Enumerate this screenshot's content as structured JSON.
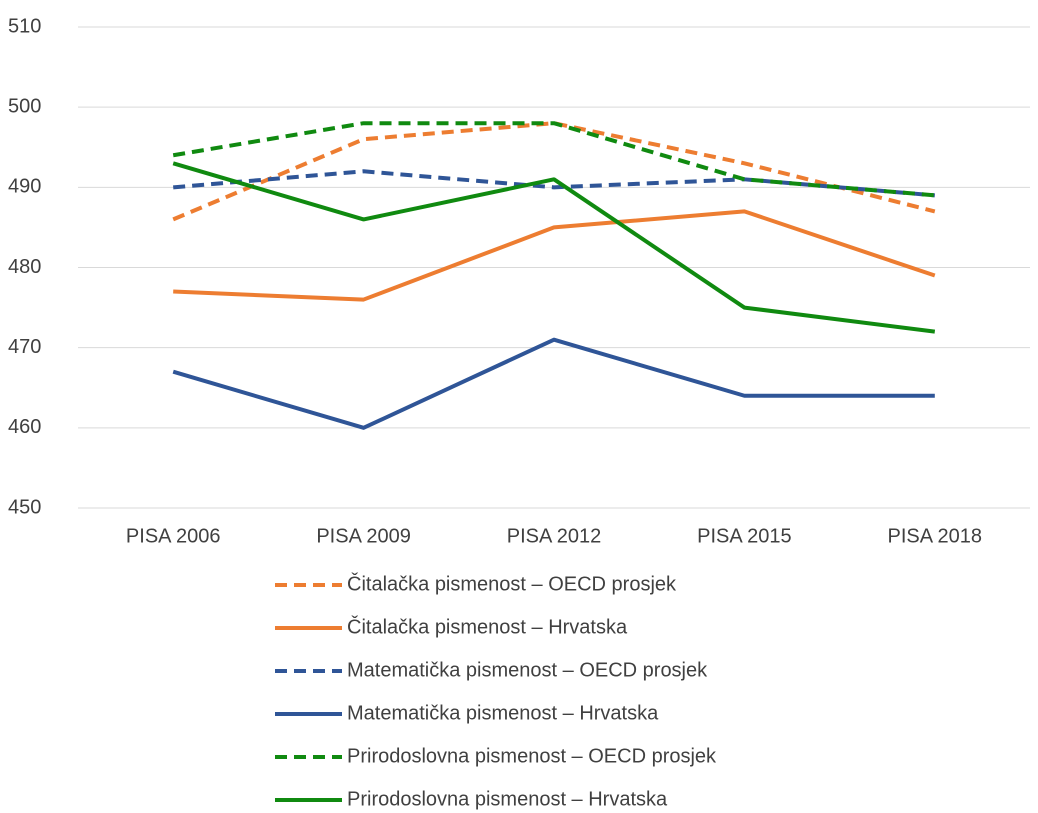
{
  "chart_data": {
    "type": "line",
    "categories": [
      "PISA 2006",
      "PISA 2009",
      "PISA 2012",
      "PISA 2015",
      "PISA 2018"
    ],
    "ylim": [
      450,
      510
    ],
    "yticks": [
      450,
      460,
      470,
      480,
      490,
      500,
      510
    ],
    "grid": true,
    "series": [
      {
        "name": "Čitalačka pismenost – OECD prosjek",
        "color": "#ED7D31",
        "dashed": true,
        "values": [
          486,
          496,
          498,
          493,
          487
        ]
      },
      {
        "name": "Čitalačka pismenost – Hrvatska",
        "color": "#ED7D31",
        "dashed": false,
        "values": [
          477,
          476,
          485,
          487,
          479
        ]
      },
      {
        "name": "Matematička pismenost – OECD prosjek",
        "color": "#2F5597",
        "dashed": true,
        "values": [
          490,
          492,
          490,
          491,
          489
        ]
      },
      {
        "name": "Matematička pismenost – Hrvatska",
        "color": "#2F5597",
        "dashed": false,
        "values": [
          467,
          460,
          471,
          464,
          464
        ]
      },
      {
        "name": "Prirodoslovna pismenost – OECD prosjek",
        "color": "#108A10",
        "dashed": true,
        "values": [
          494,
          498,
          498,
          491,
          489
        ]
      },
      {
        "name": "Prirodoslovna pismenost – Hrvatska",
        "color": "#108A10",
        "dashed": false,
        "values": [
          493,
          486,
          491,
          475,
          472
        ]
      }
    ]
  }
}
